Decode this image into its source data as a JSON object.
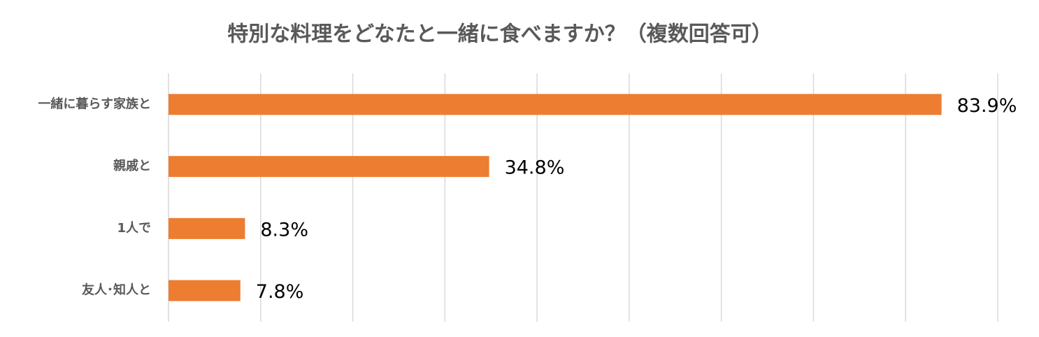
{
  "chart_data": {
    "type": "bar",
    "orientation": "horizontal",
    "title": "特別な料理をどなたと一緒に食べますか？（複数回答可）",
    "categories": [
      "一緒に暮らす家族と",
      "親戚と",
      "1人で",
      "友人･知人と"
    ],
    "values": [
      83.9,
      34.8,
      8.3,
      7.8
    ],
    "value_labels": [
      "83.9%",
      "34.8%",
      "8.3%",
      "7.8%"
    ],
    "color": "#ed7d31",
    "xlim": [
      0,
      90
    ],
    "xticks": [
      0,
      10,
      20,
      30,
      40,
      50,
      60,
      70,
      80,
      90
    ],
    "grid": true
  }
}
